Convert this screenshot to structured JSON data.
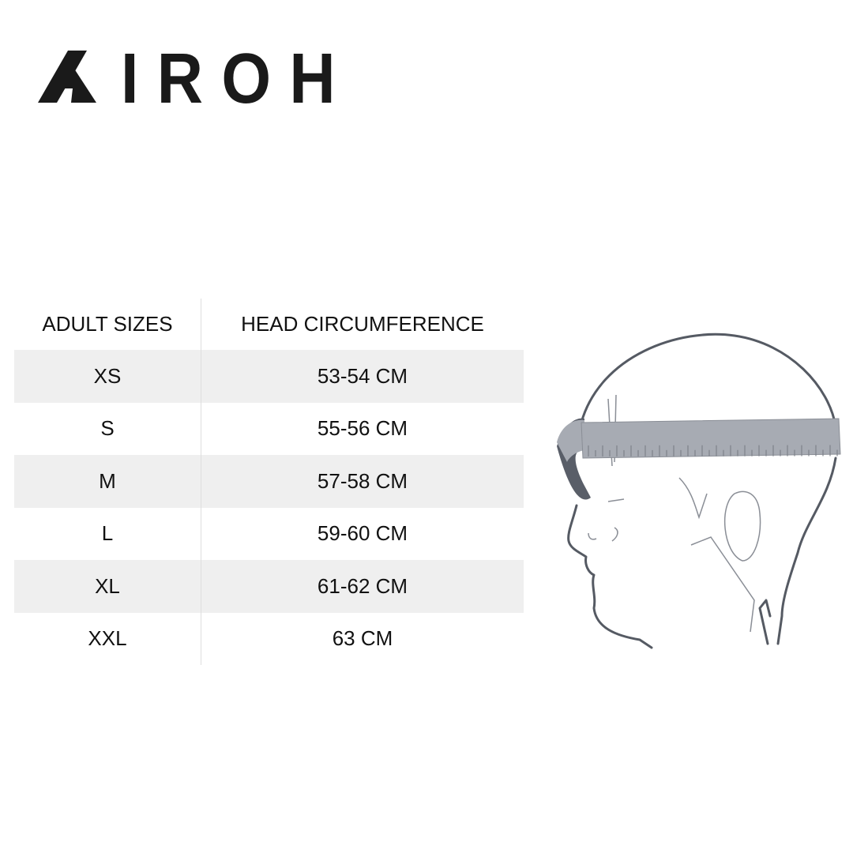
{
  "brand": {
    "logo_text": "AIROH"
  },
  "size_table": {
    "headers": [
      "ADULT SIZES",
      "HEAD CIRCUMFERENCE"
    ],
    "rows": [
      {
        "size": "XS",
        "circumference": "53-54 CM"
      },
      {
        "size": "S",
        "circumference": "55-56 CM"
      },
      {
        "size": "M",
        "circumference": "57-58 CM"
      },
      {
        "size": "L",
        "circumference": "59-60 CM"
      },
      {
        "size": "XL",
        "circumference": "61-62 CM"
      },
      {
        "size": "XXL",
        "circumference": "63 CM"
      }
    ]
  },
  "illustration": {
    "subject": "head-measuring-tape-illustration"
  },
  "colors": {
    "text": "#111111",
    "row_shade": "#efefef",
    "tape": "#a7abb3",
    "outline": "#555a63"
  }
}
